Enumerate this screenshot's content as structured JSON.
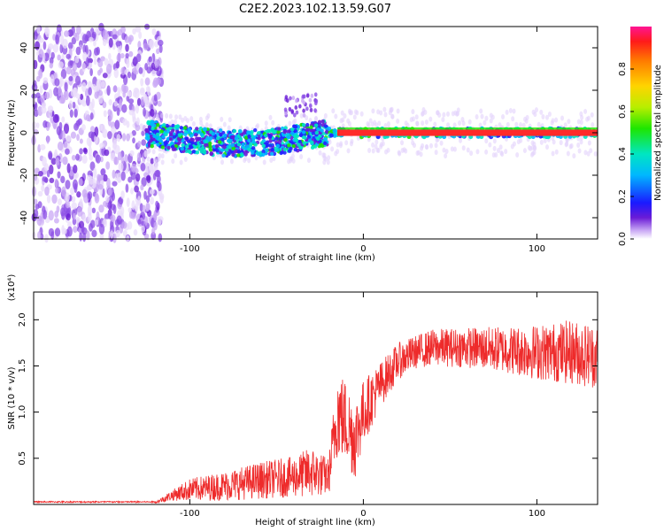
{
  "title": "C2E2.2023.102.13.59.G07",
  "colors": {
    "snr_line": "#ee2b2b",
    "spectrogram_low": "#6a1bd6"
  },
  "chart_data": [
    {
      "type": "heatmap",
      "xlabel": "Height of straight line (km)",
      "ylabel": "Frequency (Hz)",
      "xlim": [
        -190,
        135
      ],
      "ylim": [
        -50,
        50
      ],
      "x_ticks": [
        -100,
        0,
        100
      ],
      "y_ticks": [
        -40,
        -20,
        0,
        20,
        40
      ],
      "colorbar": {
        "label": "Normalized spectral amplitude",
        "range": [
          0,
          1
        ],
        "ticks": [
          "0.0",
          "0.2",
          "0.4",
          "0.6",
          "0.8"
        ],
        "colormap": "rainbow"
      },
      "regions": [
        {
          "x": [
            -190,
            -116
          ],
          "description_level": "noise",
          "freq_spread": [
            -50,
            50
          ]
        },
        {
          "x": [
            -125,
            -20
          ],
          "center_freq": [
            0,
            -5
          ],
          "spread_hz": 6
        },
        {
          "x": [
            -20,
            135
          ],
          "center_freq": 0,
          "spread_hz": 2
        }
      ]
    },
    {
      "type": "line",
      "xlabel": "Height of straight line (km)",
      "ylabel": "SNR (10 * v/v)",
      "y_multiplier": "(x10⁴)",
      "xlim": [
        -190,
        135
      ],
      "ylim": [
        0.0,
        2.3
      ],
      "x_ticks": [
        -100,
        0,
        100
      ],
      "y_ticks": [
        0.5,
        1.0,
        1.5,
        2.0
      ],
      "y_tick_labels": [
        "0.5",
        "1.0",
        "1.5",
        "2.0"
      ],
      "series": [
        {
          "envelope_x": [
            -190,
            -120,
            -110,
            -100,
            -80,
            -60,
            -40,
            -30,
            -20,
            -15,
            -10,
            -5,
            0,
            10,
            20,
            30,
            40,
            60,
            80,
            100,
            120,
            135
          ],
          "envelope_mean": [
            0.02,
            0.02,
            0.1,
            0.16,
            0.2,
            0.26,
            0.3,
            0.35,
            0.3,
            1.0,
            0.9,
            0.7,
            1.0,
            1.3,
            1.55,
            1.65,
            1.7,
            1.7,
            1.68,
            1.65,
            1.65,
            1.6
          ],
          "envelope_noise": [
            0.01,
            0.01,
            0.06,
            0.12,
            0.16,
            0.2,
            0.22,
            0.28,
            0.2,
            0.5,
            0.45,
            0.45,
            0.35,
            0.25,
            0.2,
            0.18,
            0.2,
            0.22,
            0.25,
            0.3,
            0.35,
            0.35
          ]
        }
      ]
    }
  ]
}
